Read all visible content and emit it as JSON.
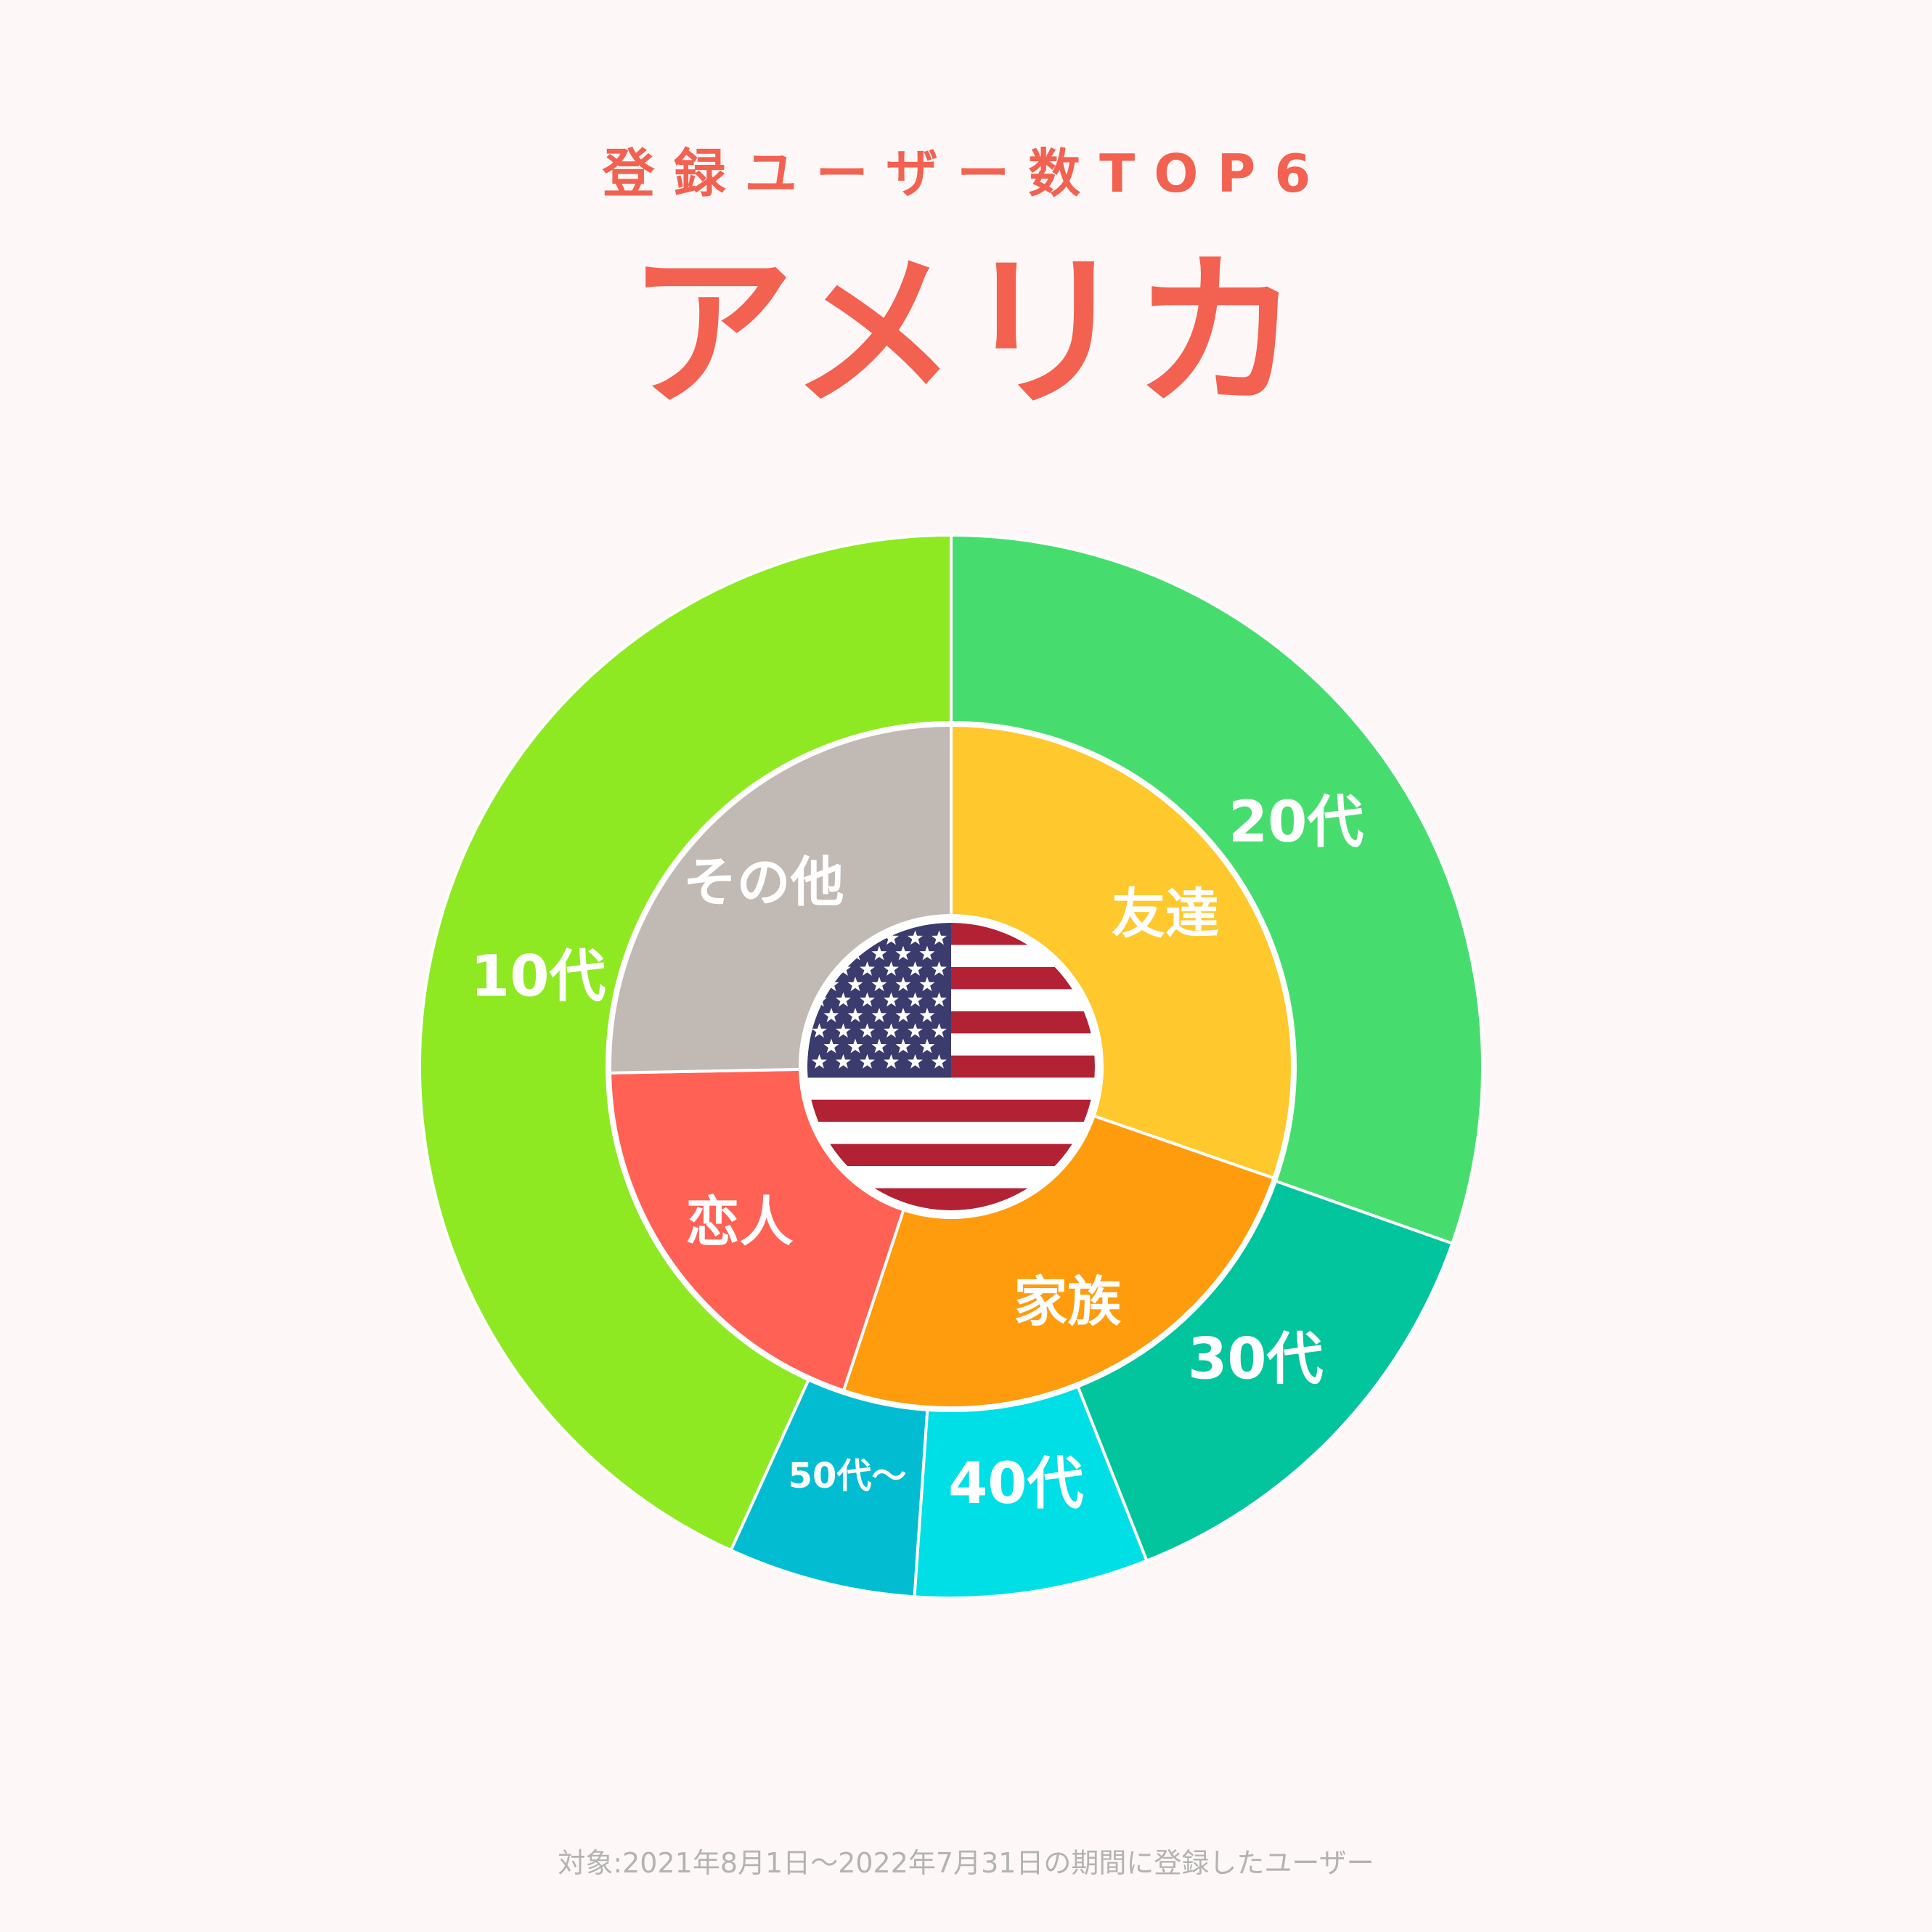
{
  "header": {
    "subtitle": "登録ユーザー数TOP6",
    "title": "アメリカ"
  },
  "footer": {
    "note": "対象:2021年8月1日〜2022年7月31日の期間に登録したユーザー"
  },
  "center_icon": "us-flag-icon",
  "chart_data": [
    {
      "type": "pie",
      "ring": "outer",
      "categories": [
        "20代",
        "30代",
        "40代",
        "50代〜",
        "10代"
      ],
      "values": [
        30.4,
        13.6,
        7.1,
        5.7,
        43.2
      ],
      "colors": [
        "#47dd6e",
        "#02c49d",
        "#00dfe6",
        "#02bdd2",
        "#8fe922"
      ],
      "label_sizes": [
        "large",
        "large",
        "large",
        "small",
        "large"
      ]
    },
    {
      "type": "pie",
      "ring": "inner",
      "categories": [
        "友達",
        "家族",
        "恋人",
        "その他"
      ],
      "values": [
        30.3,
        24.8,
        19.6,
        25.3
      ],
      "colors": [
        "#ffc82c",
        "#ff9c0d",
        "#ff6254",
        "#c1b9b4"
      ],
      "label_sizes": [
        "large",
        "large",
        "large",
        "large"
      ]
    }
  ]
}
